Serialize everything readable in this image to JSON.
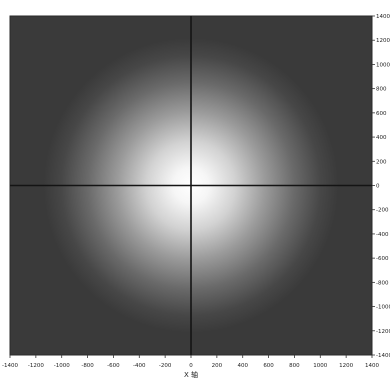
{
  "chart_data": {
    "type": "heatmap",
    "title": "",
    "xlabel": "X 轴 ",
    "ylabel": "",
    "x_ticks": [
      -1400,
      -1200,
      -1000,
      -800,
      -600,
      -400,
      -200,
      0,
      200,
      400,
      600,
      800,
      1000,
      1200,
      1400
    ],
    "y_ticks": [
      1400,
      1200,
      1000,
      800,
      600,
      400,
      200,
      0,
      -200,
      -400,
      -600,
      -800,
      -1000,
      -1200,
      -1400
    ],
    "xlim": [
      -1400,
      1400
    ],
    "ylim": [
      -1400,
      1400
    ],
    "crosshair": {
      "x": 0,
      "y": 0
    },
    "spot": {
      "center_x": 0,
      "center_y": 0,
      "sigma": 600,
      "peak": 1.0
    },
    "colormap": {
      "low": "#3a3a3a",
      "high": "#ffffff",
      "crosshair": "#141414"
    },
    "grid": false
  }
}
